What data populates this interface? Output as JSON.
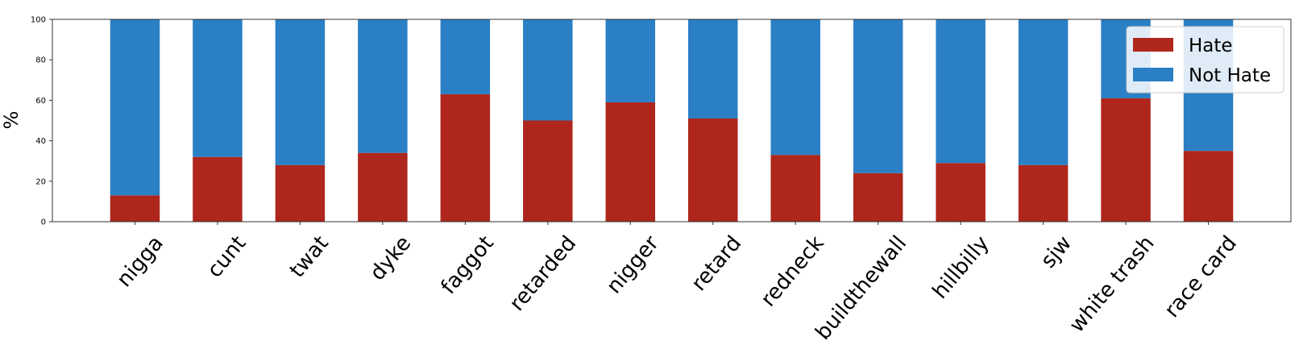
{
  "chart_data": {
    "type": "bar",
    "stacked": true,
    "ylabel": "%",
    "xlabel": "",
    "ylim": [
      0,
      100
    ],
    "yticks": [
      0,
      20,
      40,
      60,
      80,
      100
    ],
    "grid": false,
    "legend_position": "top-right",
    "categories": [
      "nigga",
      "cunt",
      "twat",
      "dyke",
      "faggot",
      "retarded",
      "nigger",
      "retard",
      "redneck",
      "buildthewall",
      "hillbilly",
      "sjw",
      "white trash",
      "race card"
    ],
    "series": [
      {
        "name": "Hate",
        "color": "#ae261c",
        "values": [
          13,
          32,
          28,
          34,
          63,
          50,
          59,
          51,
          33,
          24,
          29,
          28,
          61,
          35
        ]
      },
      {
        "name": "Not Hate",
        "color": "#2a7fc5",
        "values": [
          87,
          68,
          72,
          66,
          37,
          50,
          41,
          49,
          67,
          76,
          71,
          72,
          39,
          65
        ]
      }
    ]
  }
}
